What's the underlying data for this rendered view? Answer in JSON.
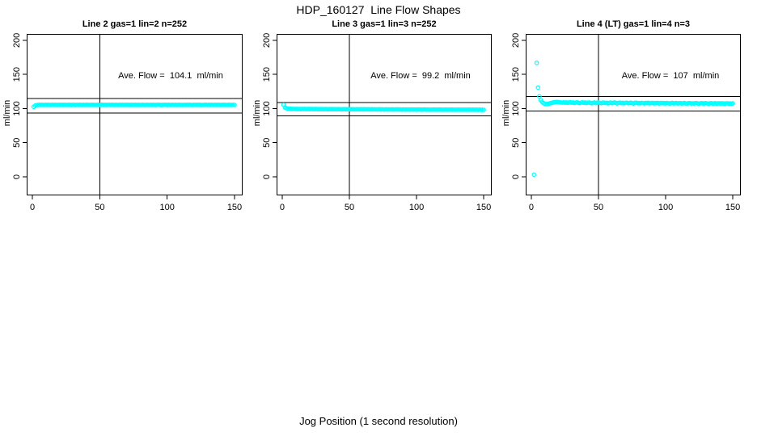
{
  "figure": {
    "title": "HDP_160127  Line Flow Shapes",
    "xlabel": "Jog Position (1 second resolution)"
  },
  "colors": {
    "points": "#00FFFF",
    "axis": "#000000",
    "background": "#FFFFFF"
  },
  "axes": {
    "ylabel": "ml/min",
    "x_ticks": [
      0,
      50,
      100,
      150
    ],
    "y_ticks": [
      0,
      50,
      100,
      150,
      200
    ],
    "xlim": [
      0,
      150
    ],
    "ylim": [
      0,
      200
    ],
    "xlim_render": [
      -4.2,
      156.0
    ],
    "ylim_render": [
      -27.2,
      209.4
    ],
    "vline_x": 50
  },
  "chart_data": [
    {
      "type": "scatter",
      "title": "Line 2 gas=1 lin=2 n=252",
      "gas": 1,
      "lin": 2,
      "n": 252,
      "annotation": "Ave. Flow =  104.1  ml/min",
      "ave_flow": 104.1,
      "hlines": [
        114.5,
        93.7
      ],
      "x_start": 1,
      "x_step": 1,
      "y": [
        102.6,
        104.2,
        105.0,
        105.3,
        105.5,
        105.2,
        105.6,
        105.3,
        105.4,
        105.6,
        105.2,
        105.5,
        105.3,
        105.4,
        105.5,
        105.3,
        105.6,
        105.2,
        105.4,
        105.5,
        105.3,
        105.6,
        105.2,
        105.5,
        105.4,
        105.3,
        105.6,
        105.4,
        105.2,
        105.5,
        105.4,
        105.2,
        105.6,
        105.3,
        105.5,
        105.4,
        105.2,
        105.6,
        105.3,
        105.5,
        105.5,
        105.3,
        105.4,
        105.6,
        105.2,
        105.5,
        105.3,
        105.4,
        105.6,
        105.2,
        105.4,
        105.6,
        105.3,
        105.5,
        105.2,
        105.4,
        105.6,
        105.3,
        105.5,
        105.4,
        105.2,
        105.5,
        105.4,
        105.3,
        105.6,
        105.2,
        105.5,
        105.3,
        105.6,
        105.4,
        105.5,
        105.2,
        105.4,
        105.6,
        105.3,
        105.5,
        105.4,
        105.2,
        105.6,
        105.3,
        105.4,
        105.5,
        105.3,
        105.2,
        105.6,
        105.4,
        105.3,
        105.5,
        105.2,
        105.6,
        105.3,
        105.4,
        105.6,
        105.5,
        105.2,
        105.3,
        105.6,
        105.4,
        105.5,
        105.2,
        105.5,
        105.4,
        105.2,
        105.6,
        105.3,
        105.5,
        105.2,
        105.4,
        105.6,
        105.3,
        105.4,
        105.3,
        105.5,
        105.2,
        105.6,
        105.4,
        105.5,
        105.3,
        105.2,
        105.6,
        105.3,
        105.5,
        105.4,
        105.6,
        105.2,
        105.3,
        105.4,
        105.6,
        105.5,
        105.3,
        105.6,
        105.2,
        105.5,
        105.3,
        105.4,
        105.6,
        105.2,
        105.5,
        105.4,
        105.3,
        105.5,
        105.4,
        105.6,
        105.3,
        105.2,
        105.5,
        105.4,
        105.3,
        105.6,
        105.4
      ]
    },
    {
      "type": "scatter",
      "title": "Line 3 gas=1 lin=3 n=252",
      "gas": 1,
      "lin": 3,
      "n": 252,
      "annotation": "Ave. Flow =  99.2  ml/min",
      "ave_flow": 99.2,
      "hlines": [
        109.1,
        89.3
      ],
      "x_start": 1,
      "x_step": 1,
      "y": [
        105.5,
        101.8,
        100.6,
        100.1,
        99.8,
        99.7,
        99.6,
        99.5,
        99.5,
        99.4,
        99.5,
        99.3,
        99.4,
        99.2,
        99.4,
        99.3,
        99.5,
        99.2,
        99.3,
        99.4,
        99.2,
        99.4,
        99.3,
        99.1,
        99.4,
        99.2,
        99.3,
        99.1,
        99.3,
        99.2,
        99.1,
        99.3,
        99.2,
        99.0,
        99.2,
        99.1,
        99.3,
        99.0,
        99.2,
        99.1,
        99.0,
        99.2,
        99.1,
        98.9,
        99.1,
        99.0,
        99.2,
        98.9,
        99.1,
        99.0,
        98.9,
        99.1,
        99.0,
        98.8,
        99.0,
        98.9,
        99.1,
        98.8,
        99.0,
        98.9,
        98.9,
        99.0,
        98.8,
        99.0,
        98.9,
        98.7,
        99.0,
        98.8,
        98.9,
        98.8,
        98.8,
        99.0,
        98.7,
        98.9,
        98.8,
        98.6,
        98.9,
        98.7,
        98.8,
        98.7,
        98.7,
        98.9,
        98.6,
        98.8,
        98.7,
        98.9,
        98.6,
        98.8,
        98.5,
        98.7,
        98.6,
        98.8,
        98.5,
        98.7,
        98.6,
        98.8,
        98.5,
        98.7,
        98.6,
        98.4,
        98.6,
        98.7,
        98.4,
        98.6,
        98.5,
        98.7,
        98.4,
        98.6,
        98.5,
        98.3,
        98.5,
        98.6,
        98.4,
        98.6,
        98.3,
        98.5,
        98.6,
        98.4,
        98.5,
        98.3,
        98.4,
        98.6,
        98.3,
        98.5,
        98.4,
        98.6,
        98.3,
        98.5,
        98.2,
        98.4,
        98.4,
        98.5,
        98.2,
        98.4,
        98.3,
        98.5,
        98.2,
        98.4,
        98.3,
        98.5,
        98.3,
        98.5,
        98.2,
        98.4,
        98.3,
        98.1,
        98.4,
        98.2,
        98.3,
        98.2
      ]
    },
    {
      "type": "scatter",
      "title": "Line 4 (LT) gas=1 lin=4 n=3",
      "gas": 1,
      "lin": 4,
      "n": 3,
      "annotation": "Ave. Flow =  107  ml/min",
      "ave_flow": 107,
      "hlines": [
        117.7,
        96.3
      ],
      "x_start": 1,
      "x_step": 1,
      "y": [
        null,
        3.2,
        null,
        167.0,
        130.8,
        118.0,
        112.4,
        109.8,
        108.0,
        107.0,
        106.6,
        106.7,
        107.1,
        107.7,
        108.3,
        108.8,
        109.2,
        109.5,
        109.6,
        109.5,
        109.3,
        109.0,
        108.7,
        109.2,
        108.5,
        109.1,
        108.4,
        108.9,
        109.3,
        108.6,
        109.0,
        108.3,
        108.8,
        109.2,
        108.5,
        108.0,
        108.7,
        109.1,
        108.4,
        108.9,
        108.2,
        108.7,
        109.0,
        108.3,
        107.8,
        108.5,
        108.9,
        108.2,
        108.6,
        109.0,
        108.4,
        107.9,
        108.6,
        108.8,
        108.1,
        108.5,
        107.7,
        108.3,
        108.8,
        108.0,
        108.5,
        108.9,
        108.2,
        107.6,
        108.4,
        108.7,
        108.0,
        108.5,
        107.8,
        108.3,
        108.6,
        107.9,
        108.2,
        108.7,
        108.0,
        107.5,
        108.3,
        108.6,
        107.9,
        108.2,
        107.7,
        108.4,
        108.1,
        107.6,
        108.3,
        107.9,
        108.5,
        107.8,
        108.1,
        108.4,
        107.6,
        108.2,
        107.9,
        108.3,
        107.5,
        108.0,
        108.4,
        107.7,
        108.1,
        107.6,
        108.2,
        107.8,
        107.4,
        108.0,
        108.3,
        107.6,
        107.9,
        108.2,
        107.5,
        107.9,
        108.1,
        107.4,
        107.8,
        108.2,
        107.6,
        107.3,
        107.9,
        108.1,
        107.5,
        107.8,
        107.3,
        107.9,
        108.1,
        107.5,
        107.2,
        107.8,
        108.0,
        107.4,
        107.7,
        108.0,
        107.5,
        107.1,
        107.7,
        107.9,
        107.3,
        107.6,
        107.9,
        107.2,
        107.6,
        107.8,
        107.3,
        107.7,
        107.5,
        107.1,
        107.6,
        107.8,
        107.2,
        107.5,
        107.3,
        107.6
      ]
    }
  ]
}
